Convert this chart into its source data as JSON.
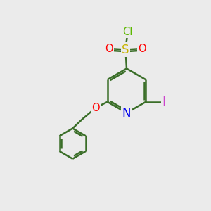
{
  "background_color": "#ebebeb",
  "atom_colors": {
    "Cl": "#5cb800",
    "S": "#c8b400",
    "O": "#ff0000",
    "N": "#0000ee",
    "I": "#cc44cc",
    "C": "#3a6e28"
  },
  "bond_color": "#3a6e28",
  "bond_width": 1.8,
  "font_size": 10.5
}
